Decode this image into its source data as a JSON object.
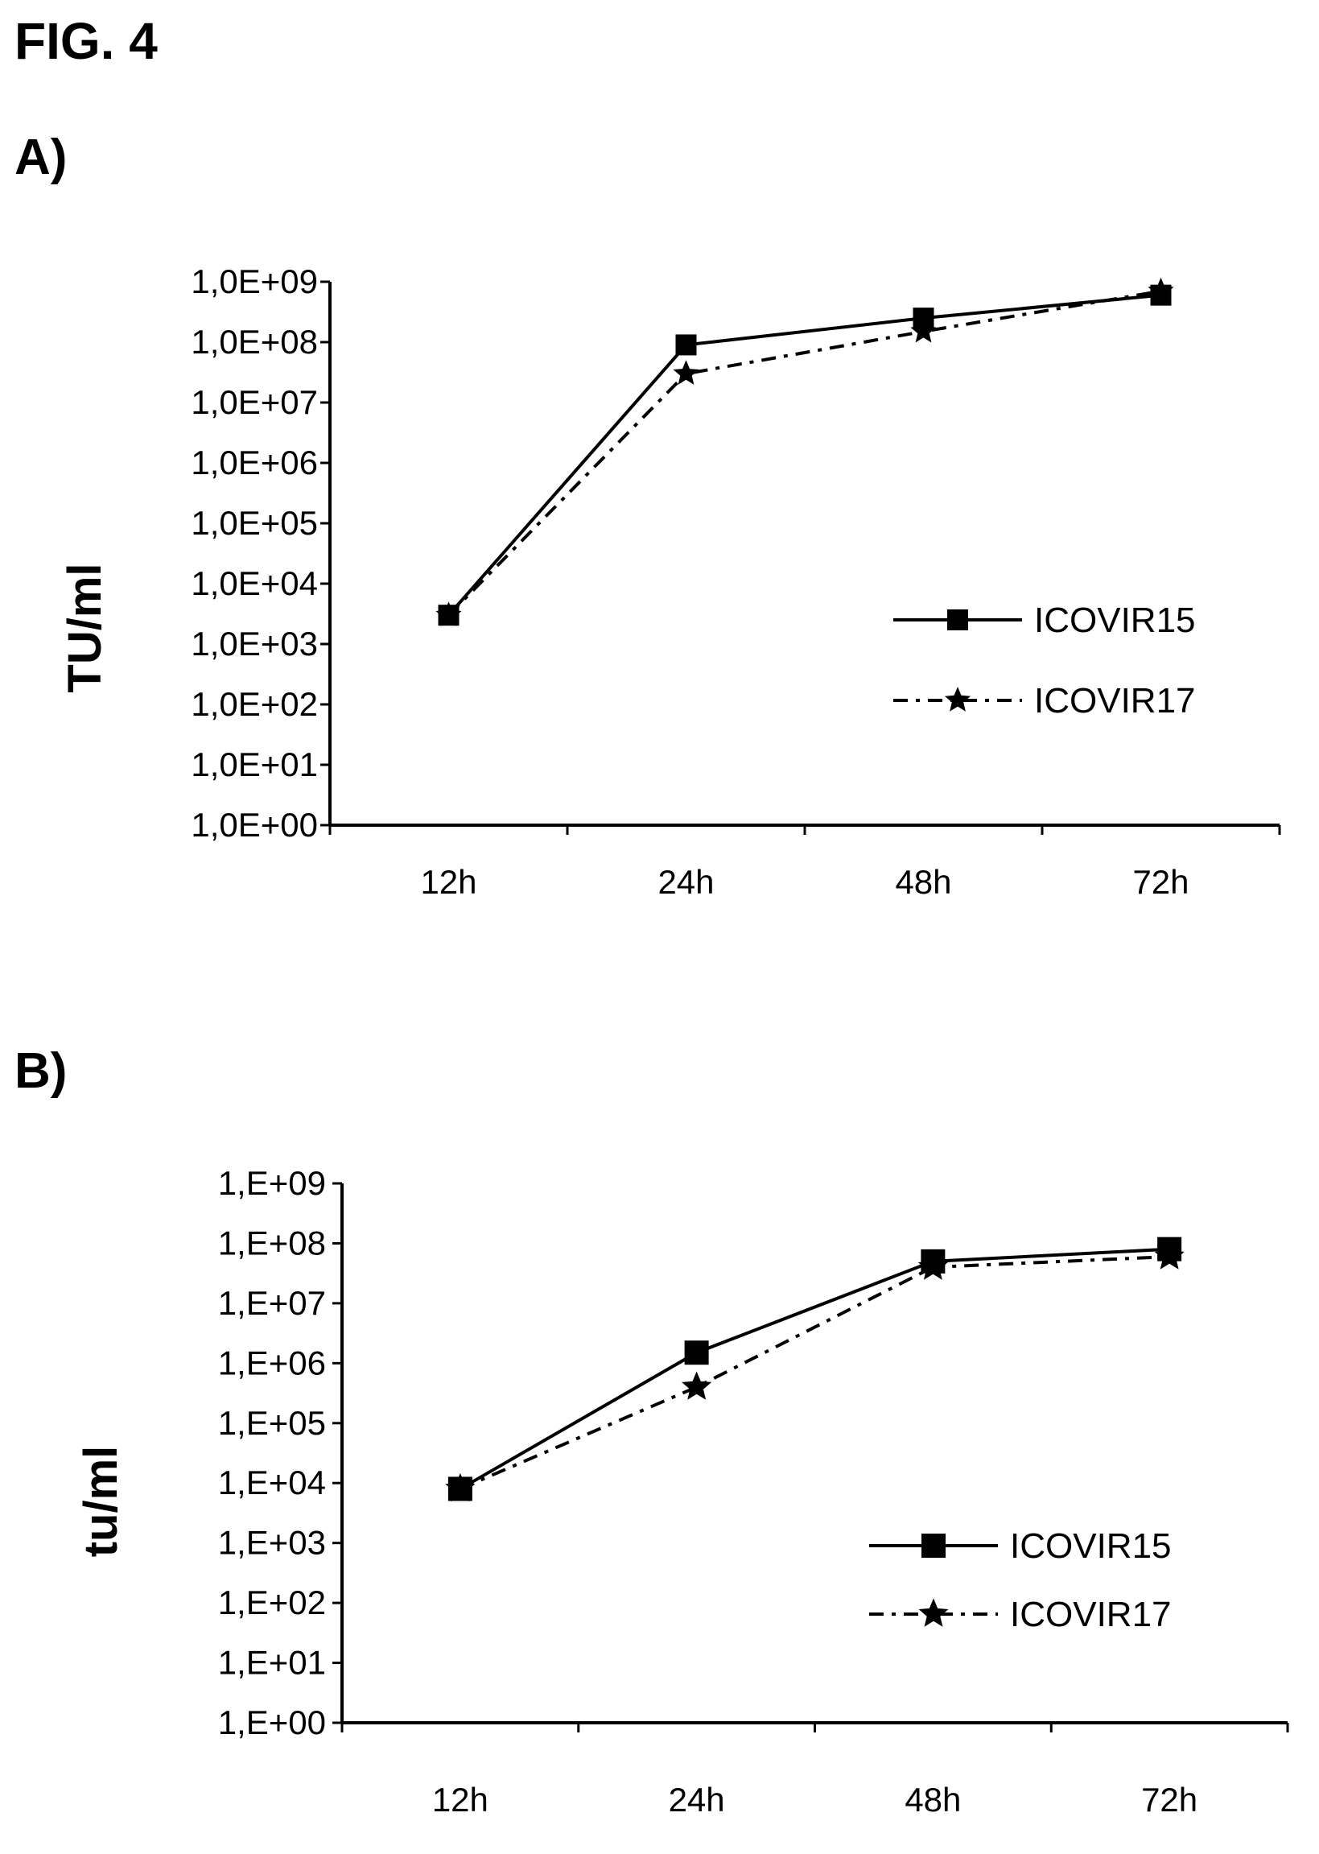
{
  "figure_title": "FIG. 4",
  "chart_data": [
    {
      "panel_label": "A)",
      "type": "line",
      "ylabel": "TU/ml",
      "xlabel": "",
      "yscale": "log",
      "ylim": [
        1,
        1000000000
      ],
      "yticks": [
        "1,0E+00",
        "1,0E+01",
        "1,0E+02",
        "1,0E+03",
        "1,0E+04",
        "1,0E+05",
        "1,0E+06",
        "1,0E+07",
        "1,0E+08",
        "1,0E+09"
      ],
      "categories": [
        "12h",
        "24h",
        "48h",
        "72h"
      ],
      "legend": "right",
      "grid": false,
      "series": [
        {
          "name": "ICOVIR15",
          "values": [
            3000,
            90000000,
            250000000,
            600000000
          ],
          "line": "solid",
          "marker": "square"
        },
        {
          "name": "ICOVIR17",
          "values": [
            3000,
            30000000,
            150000000,
            700000000
          ],
          "line": "dashdot",
          "marker": "star"
        }
      ]
    },
    {
      "panel_label": "B)",
      "type": "line",
      "ylabel": "tu/ml",
      "xlabel": "",
      "yscale": "log",
      "ylim": [
        1,
        1000000000
      ],
      "yticks": [
        "1,E+00",
        "1,E+01",
        "1,E+02",
        "1,E+03",
        "1,E+04",
        "1,E+05",
        "1,E+06",
        "1,E+07",
        "1,E+08",
        "1,E+09"
      ],
      "categories": [
        "12h",
        "24h",
        "48h",
        "72h"
      ],
      "legend": "right",
      "grid": false,
      "series": [
        {
          "name": "ICOVIR15",
          "values": [
            8000,
            1500000,
            50000000,
            80000000
          ],
          "line": "solid",
          "marker": "square"
        },
        {
          "name": "ICOVIR17",
          "values": [
            8000,
            400000,
            40000000,
            60000000
          ],
          "line": "dashdot",
          "marker": "star"
        }
      ]
    }
  ]
}
